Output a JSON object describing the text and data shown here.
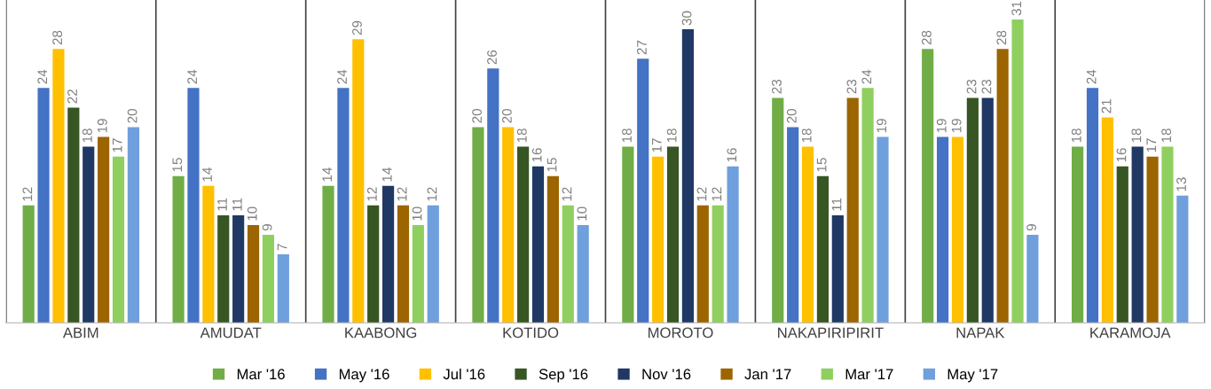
{
  "chart_data": {
    "type": "bar",
    "categories": [
      "ABIM",
      "AMUDAT",
      "KAABONG",
      "KOTIDO",
      "MOROTO",
      "NAKAPIRIPIRIT",
      "NAPAK",
      "KARAMOJA"
    ],
    "series": [
      {
        "name": "Mar '16",
        "color": "#70ad47",
        "values": [
          12,
          15,
          14,
          20,
          18,
          23,
          28,
          18
        ]
      },
      {
        "name": "May '16",
        "color": "#4472c4",
        "values": [
          24,
          24,
          24,
          26,
          27,
          20,
          19,
          24
        ]
      },
      {
        "name": "Jul '16",
        "color": "#ffc000",
        "values": [
          28,
          14,
          29,
          20,
          17,
          18,
          19,
          21
        ]
      },
      {
        "name": "Sep '16",
        "color": "#375623",
        "values": [
          22,
          11,
          12,
          18,
          18,
          15,
          23,
          16
        ]
      },
      {
        "name": "Nov '16",
        "color": "#203864",
        "values": [
          18,
          11,
          14,
          16,
          30,
          11,
          23,
          18
        ]
      },
      {
        "name": "Jan '17",
        "color": "#9c6500",
        "values": [
          19,
          10,
          12,
          15,
          12,
          23,
          28,
          17
        ]
      },
      {
        "name": "Mar '17",
        "color": "#8fcf5f",
        "values": [
          17,
          9,
          10,
          12,
          12,
          24,
          31,
          18
        ]
      },
      {
        "name": "May '17",
        "color": "#6f9fdc",
        "values": [
          20,
          7,
          12,
          10,
          16,
          19,
          9,
          13
        ]
      }
    ],
    "ylim": [
      0,
      33
    ],
    "data_labels": true,
    "grid": "x",
    "legend": "bottom",
    "tick_labels": "x"
  }
}
